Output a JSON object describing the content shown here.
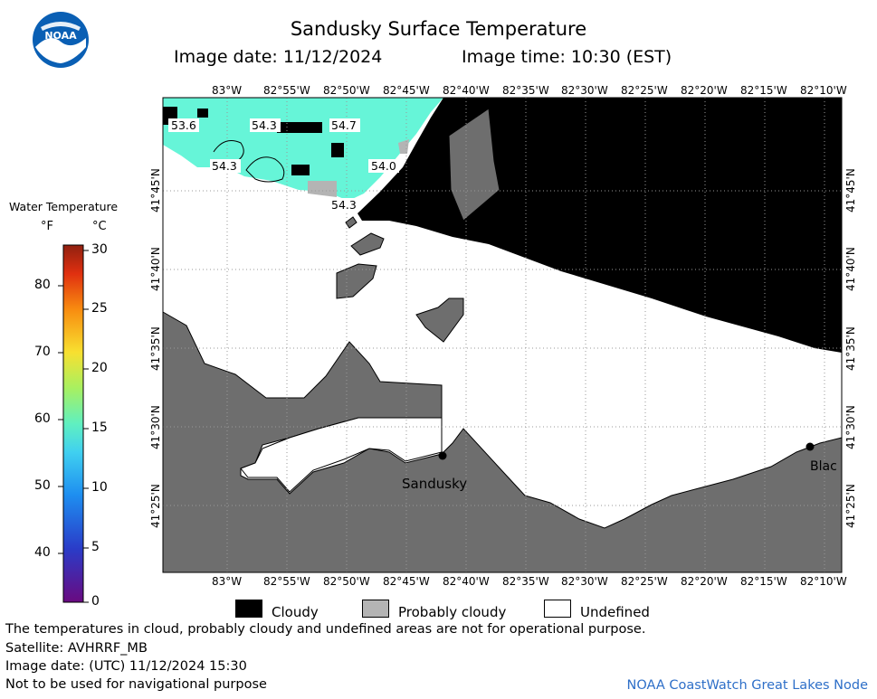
{
  "header": {
    "title": "Sandusky Surface Temperature",
    "image_date": "Image date: 11/12/2024",
    "image_time": "Image time: 10:30 (EST)",
    "logo_text": "NOAA"
  },
  "axes": {
    "longitude_ticks": [
      "83°W",
      "82°55'W",
      "82°50'W",
      "82°45'W",
      "82°40'W",
      "82°35'W",
      "82°30'W",
      "82°25'W",
      "82°20'W",
      "82°15'W",
      "82°10'W"
    ],
    "latitude_ticks": [
      "41°45'N",
      "41°40'N",
      "41°35'N",
      "41°30'N",
      "41°25'N"
    ]
  },
  "legend": {
    "title": "Water Temperature",
    "unit_f": "°F",
    "unit_c": "°C",
    "fahrenheit_labels": [
      "80",
      "70",
      "60",
      "50",
      "40"
    ],
    "celsius_labels": [
      "30",
      "25",
      "20",
      "15",
      "10",
      "5",
      "0"
    ],
    "celsius_range": [
      0,
      30
    ]
  },
  "map": {
    "temperature_labels": [
      "53.6",
      "54.3",
      "54.7",
      "54.3",
      "54.0",
      "54.3"
    ],
    "places": [
      "Sandusky",
      "Blac"
    ],
    "colors": {
      "land": "#6e6e6e",
      "cloud": "#000000",
      "probably_cloudy": "#b4b4b4",
      "water_warm": "#66f5d8",
      "undefined": "#ffffff"
    }
  },
  "key": {
    "cloudy": "Cloudy",
    "probably_cloudy": "Probably cloudy",
    "undefined": "Undefined"
  },
  "footer": {
    "disclaimer": "The temperatures in cloud, probably cloudy and undefined areas are not for operational purpose.",
    "satellite": "Satellite: AVHRRF_MB",
    "utc_date": "Image date: (UTC) 11/12/2024  15:30",
    "navigation": "Not to be used for navigational purpose",
    "node": "NOAA CoastWatch Great Lakes Node"
  }
}
